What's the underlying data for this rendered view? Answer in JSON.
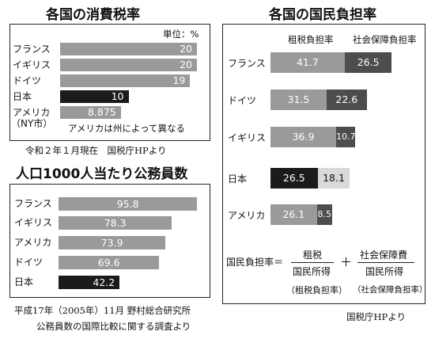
{
  "chart_data": [
    {
      "type": "bar",
      "orientation": "horizontal",
      "title": "各国の消費税率",
      "unit_label": "単位：%",
      "categories": [
        "フランス",
        "イギリス",
        "ドイツ",
        "日本",
        "アメリカ"
      ],
      "category_sublabels": [
        "",
        "",
        "",
        "",
        "（NY市）"
      ],
      "values": [
        20,
        20,
        19,
        10,
        8.875
      ],
      "value_labels": [
        "20",
        "20",
        "19",
        "10",
        "8.875"
      ],
      "xlim": [
        0,
        20
      ],
      "highlight": "日本",
      "annotation": "アメリカは州によって異なる",
      "source": "令和２年１月現在　国税庁HPより"
    },
    {
      "type": "bar",
      "orientation": "horizontal",
      "title": "人口1000人当たり公務員数",
      "categories": [
        "フランス",
        "イギリス",
        "アメリカ",
        "ドイツ",
        "日本"
      ],
      "values": [
        95.8,
        78.3,
        73.9,
        69.6,
        42.2
      ],
      "value_labels": [
        "95.8",
        "78.3",
        "73.9",
        "69.6",
        "42.2"
      ],
      "xlim": [
        0,
        100
      ],
      "highlight": "日本",
      "source_lines": [
        "平成17年（2005年）11月 野村総合研究所",
        "公務員数の国際比較に関する調査より"
      ]
    },
    {
      "type": "bar",
      "orientation": "horizontal",
      "stacked": true,
      "title": "各国の国民負担率",
      "categories": [
        "フランス",
        "ドイツ",
        "イギリス",
        "日本",
        "アメリカ"
      ],
      "series": [
        {
          "name": "租税負担率",
          "values": [
            41.7,
            31.5,
            36.9,
            26.5,
            26.1
          ],
          "labels": [
            "41.7",
            "31.5",
            "36.9",
            "26.5",
            "26.1"
          ]
        },
        {
          "name": "社会保障負担率",
          "values": [
            26.5,
            22.6,
            10.7,
            18.1,
            8.5
          ],
          "labels": [
            "26.5",
            "22.6",
            "10.7",
            "18.1",
            "8.5"
          ]
        }
      ],
      "highlight": "日本",
      "formula": {
        "lhs": "国民負担率＝",
        "term1_num": "租税",
        "term1_den": "国民所得",
        "term1_note": "（租税負担率）",
        "plus": "＋",
        "term2_num": "社会保障費",
        "term2_den": "国民所得",
        "term2_note": "（社会保障負担率）"
      },
      "source": "国税庁HPより"
    }
  ],
  "colors": {
    "bar": "#9a9a9a",
    "highlight": "#1b1b1b",
    "social_dark": "#4d4d4d",
    "japan_social": "#d9d9d9"
  }
}
